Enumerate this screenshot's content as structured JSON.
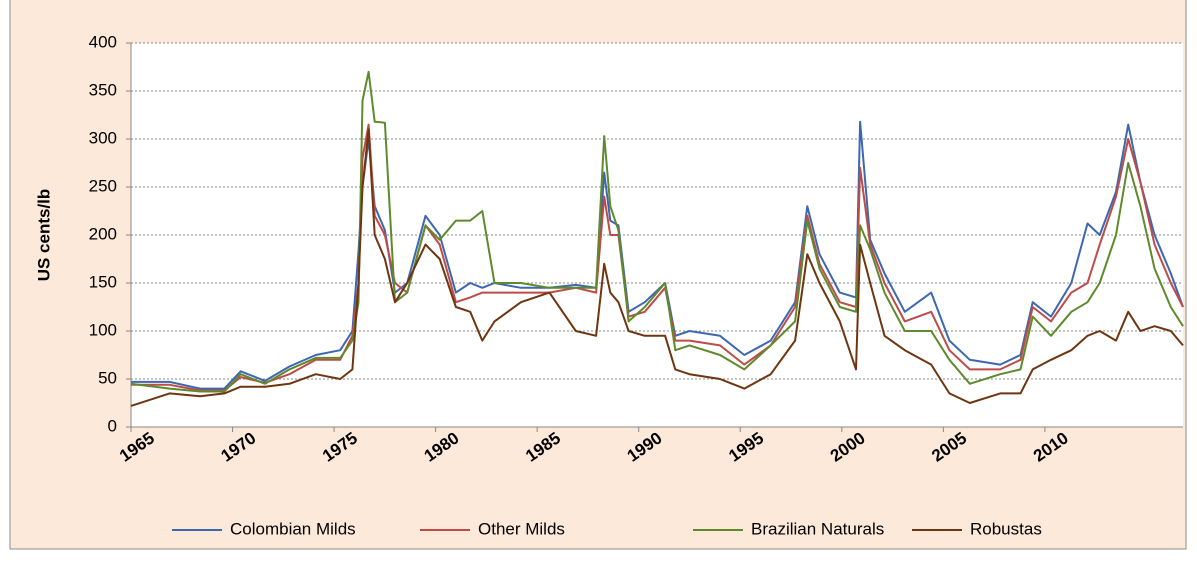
{
  "chart_data": {
    "type": "line",
    "y_label": "US cents/lb",
    "xlim": [
      1965,
      2016.8
    ],
    "xticks": [
      1965,
      1970,
      1975,
      1980,
      1985,
      1990,
      1995,
      2000,
      2005,
      2010
    ],
    "ylim": [
      0,
      400
    ],
    "yticks": [
      0,
      50,
      100,
      150,
      200,
      250,
      300,
      350,
      400
    ],
    "grid": true,
    "legend": "bottom",
    "x": [
      1965.0,
      1966.9,
      1968.4,
      1969.6,
      1970.4,
      1971.6,
      1972.8,
      1974.1,
      1975.3,
      1975.9,
      1976.2,
      1976.4,
      1976.7,
      1977.0,
      1977.5,
      1978.0,
      1978.6,
      1979.5,
      1980.2,
      1981.0,
      1981.7,
      1982.3,
      1982.9,
      1984.2,
      1985.6,
      1986.9,
      1987.9,
      1988.3,
      1988.6,
      1989.0,
      1989.5,
      1990.3,
      1991.3,
      1991.8,
      1992.5,
      1994.0,
      1995.2,
      1996.5,
      1997.7,
      1998.3,
      1998.9,
      1999.9,
      2000.7,
      2000.9,
      2001.4,
      2002.1,
      2003.1,
      2004.4,
      2005.3,
      2006.3,
      2007.8,
      2008.8,
      2009.4,
      2010.3,
      2011.3,
      2012.1,
      2012.7,
      2013.5,
      2014.1,
      2014.7,
      2015.4,
      2016.2,
      2016.8
    ],
    "series": [
      {
        "name": "Colombian Milds",
        "color": "#3d67b1",
        "values": [
          47,
          47,
          40,
          40,
          58,
          48,
          63,
          75,
          80,
          100,
          183,
          250,
          300,
          230,
          205,
          140,
          150,
          220,
          200,
          140,
          150,
          145,
          150,
          145,
          145,
          148,
          145,
          265,
          215,
          210,
          120,
          130,
          150,
          95,
          100,
          95,
          75,
          90,
          130,
          230,
          180,
          140,
          135,
          318,
          195,
          160,
          120,
          140,
          90,
          70,
          65,
          75,
          130,
          115,
          150,
          212,
          200,
          245,
          315,
          255,
          200,
          160,
          125
        ]
      },
      {
        "name": "Other Milds",
        "color": "#be4b48",
        "values": [
          44,
          44,
          38,
          38,
          52,
          46,
          55,
          70,
          70,
          95,
          150,
          280,
          315,
          220,
          200,
          150,
          140,
          210,
          190,
          130,
          135,
          140,
          140,
          140,
          140,
          145,
          140,
          240,
          200,
          200,
          115,
          120,
          145,
          90,
          90,
          85,
          65,
          85,
          125,
          220,
          170,
          130,
          125,
          270,
          190,
          150,
          110,
          120,
          80,
          60,
          60,
          70,
          125,
          110,
          140,
          150,
          190,
          240,
          300,
          255,
          190,
          150,
          125
        ]
      },
      {
        "name": "Brazilian Naturals",
        "color": "#5f8a2c",
        "values": [
          45,
          40,
          37,
          37,
          55,
          45,
          60,
          72,
          72,
          90,
          130,
          340,
          370,
          318,
          317,
          130,
          140,
          210,
          195,
          215,
          215,
          225,
          150,
          150,
          145,
          145,
          145,
          303,
          230,
          205,
          110,
          125,
          150,
          80,
          85,
          75,
          60,
          85,
          110,
          215,
          165,
          125,
          120,
          210,
          185,
          140,
          100,
          100,
          70,
          45,
          55,
          60,
          115,
          95,
          120,
          130,
          150,
          200,
          275,
          230,
          165,
          125,
          105
        ]
      },
      {
        "name": "Robustas",
        "color": "#6e3510",
        "values": [
          22,
          35,
          32,
          35,
          42,
          42,
          45,
          55,
          50,
          60,
          150,
          250,
          310,
          200,
          175,
          130,
          150,
          190,
          175,
          125,
          120,
          90,
          110,
          130,
          140,
          100,
          95,
          170,
          140,
          130,
          100,
          95,
          95,
          60,
          55,
          50,
          40,
          55,
          90,
          180,
          150,
          110,
          60,
          190,
          150,
          95,
          80,
          65,
          35,
          25,
          35,
          35,
          60,
          70,
          80,
          95,
          100,
          90,
          120,
          100,
          105,
          100,
          85
        ]
      }
    ]
  }
}
